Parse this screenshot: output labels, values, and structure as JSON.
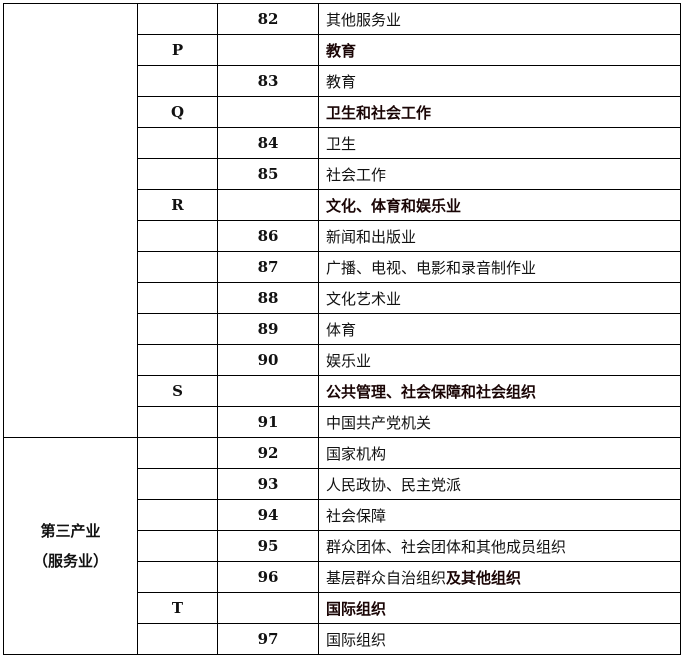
{
  "sector_label_line1": "第三产业",
  "sector_label_line2": "（服务业）",
  "rows": [
    {
      "section": "",
      "code": "82",
      "name": "其他服务业",
      "bold": false
    },
    {
      "section": "P",
      "code": "",
      "name": "教育",
      "bold": true
    },
    {
      "section": "",
      "code": "83",
      "name": "教育",
      "bold": false
    },
    {
      "section": "Q",
      "code": "",
      "name": "卫生和社会工作",
      "bold": true
    },
    {
      "section": "",
      "code": "84",
      "name": "卫生",
      "bold": false
    },
    {
      "section": "",
      "code": "85",
      "name": "社会工作",
      "bold": false
    },
    {
      "section": "R",
      "code": "",
      "name": "文化、体育和娱乐业",
      "bold": true
    },
    {
      "section": "",
      "code": "86",
      "name": "新闻和出版业",
      "bold": false
    },
    {
      "section": "",
      "code": "87",
      "name": "广播、电视、电影和录音制作业",
      "bold": false
    },
    {
      "section": "",
      "code": "88",
      "name": "文化艺术业",
      "bold": false
    },
    {
      "section": "",
      "code": "89",
      "name": "体育",
      "bold": false
    },
    {
      "section": "",
      "code": "90",
      "name": "娱乐业",
      "bold": false
    },
    {
      "section": "S",
      "code": "",
      "name": "公共管理、社会保障和社会组织",
      "bold": true
    },
    {
      "section": "",
      "code": "91",
      "name": "中国共产党机关",
      "bold": false
    },
    {
      "section": "",
      "code": "92",
      "name": "国家机构",
      "bold": false
    },
    {
      "section": "",
      "code": "93",
      "name": "人民政协、民主党派",
      "bold": false
    },
    {
      "section": "",
      "code": "94",
      "name": "社会保障",
      "bold": false
    },
    {
      "section": "",
      "code": "95",
      "name": "群众团体、社会团体和其他成员组织",
      "bold": false
    },
    {
      "section": "",
      "code": "96",
      "name": "基层群众自治组织",
      "name_bold_suffix": "及其他组织",
      "bold": false
    },
    {
      "section": "T",
      "code": "",
      "name": "国际组织",
      "bold": true
    },
    {
      "section": "",
      "code": "97",
      "name": "国际组织",
      "bold": false
    }
  ]
}
